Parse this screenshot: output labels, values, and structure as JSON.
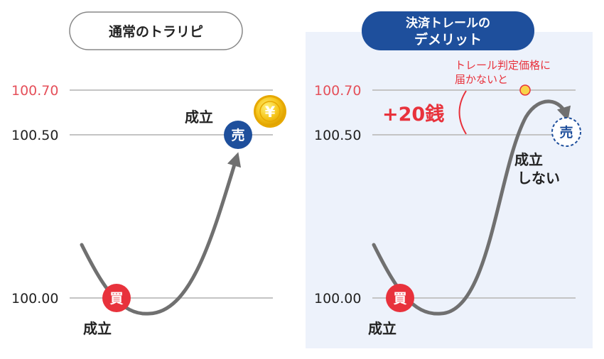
{
  "left_panel": {
    "title": "通常のトラリピ",
    "price_labels": {
      "p70": "100.70",
      "p50": "100.50",
      "p00": "100.00"
    },
    "buy_marker": "買",
    "sell_marker": "売",
    "fill_buy": "成立",
    "fill_sell": "成立",
    "profit_icon": "¥"
  },
  "right_panel": {
    "title_line1": "決済トレールの",
    "title_line2": "デメリット",
    "price_labels": {
      "p70": "100.70",
      "p50": "100.50",
      "p00": "100.00"
    },
    "buy_marker": "買",
    "sell_marker": "売",
    "fill_buy": "成立",
    "not_filled_line1": "成立",
    "not_filled_line2": "しない",
    "gain_text": "+20銭",
    "note_line1": "トレール判定価格に",
    "note_line2": "届かないと"
  },
  "colors": {
    "accent_red": "#e8323c",
    "price_red": "#e5505a",
    "navy": "#1e4f9c",
    "panel_bg": "#edf2fb",
    "curve": "#707070",
    "grid": "#c4c4c4",
    "coin": "#f6c61d"
  }
}
